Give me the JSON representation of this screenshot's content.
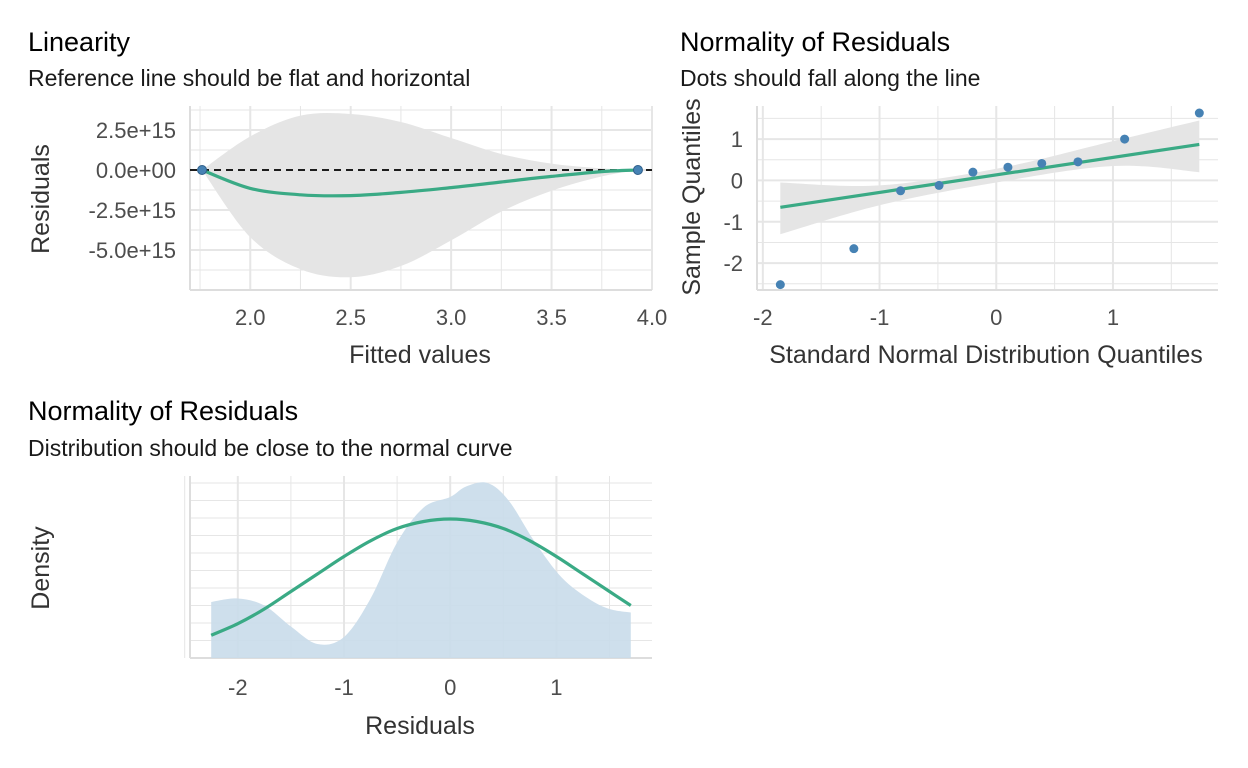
{
  "colors": {
    "line": "#3AAA85",
    "point": "#4682B4",
    "band": "#E5E5E5",
    "density_fill": "#C9DBEA",
    "grid": "#E6E6E6",
    "ref_line": "#000000"
  },
  "chart_data": [
    {
      "type": "scatter",
      "title": "Linearity",
      "subtitle": "Reference line should be flat and horizontal",
      "xlabel": "Fitted values",
      "ylabel": "Residuals",
      "xlim": [
        1.7,
        4.0
      ],
      "ylim": [
        -7500000000000000.0,
        4000000000000000.0
      ],
      "x_ticks": [
        2.0,
        2.5,
        3.0,
        3.5,
        4.0
      ],
      "x_tick_labels": [
        "2.0",
        "2.5",
        "3.0",
        "3.5",
        "4.0"
      ],
      "y_ticks": [
        2500000000000000.0,
        0,
        -2500000000000000.0,
        -5000000000000000.0
      ],
      "y_tick_labels": [
        "2.5e+15",
        "0.0e+00",
        "-2.5e+15",
        "-5.0e+15"
      ],
      "points": [
        {
          "x": 1.76,
          "y": 0
        },
        {
          "x": 3.93,
          "y": 0
        }
      ],
      "reference_line_y": 0,
      "smooth": [
        {
          "x": 1.76,
          "y": 0
        },
        {
          "x": 2.0,
          "y": -1150000000000000.0
        },
        {
          "x": 2.25,
          "y": -1550000000000000.0
        },
        {
          "x": 2.5,
          "y": -1600000000000000.0
        },
        {
          "x": 2.75,
          "y": -1400000000000000.0
        },
        {
          "x": 3.0,
          "y": -1100000000000000.0
        },
        {
          "x": 3.25,
          "y": -750000000000000.0
        },
        {
          "x": 3.5,
          "y": -400000000000000.0
        },
        {
          "x": 3.75,
          "y": -100000000000000.0
        },
        {
          "x": 3.93,
          "y": 0
        }
      ],
      "band_upper": [
        {
          "x": 1.76,
          "y": 0
        },
        {
          "x": 2.0,
          "y": 2100000000000000.0
        },
        {
          "x": 2.25,
          "y": 3400000000000000.0
        },
        {
          "x": 2.5,
          "y": 3500000000000000.0
        },
        {
          "x": 2.75,
          "y": 3000000000000000.0
        },
        {
          "x": 3.0,
          "y": 2000000000000000.0
        },
        {
          "x": 3.25,
          "y": 1000000000000000.0
        },
        {
          "x": 3.5,
          "y": 400000000000000.0
        },
        {
          "x": 3.75,
          "y": 100000000000000.0
        },
        {
          "x": 3.93,
          "y": 0
        }
      ],
      "band_lower": [
        {
          "x": 1.76,
          "y": 0
        },
        {
          "x": 2.0,
          "y": -4200000000000000.0
        },
        {
          "x": 2.25,
          "y": -6200000000000000.0
        },
        {
          "x": 2.5,
          "y": -6700000000000000.0
        },
        {
          "x": 2.75,
          "y": -6000000000000000.0
        },
        {
          "x": 3.0,
          "y": -4400000000000000.0
        },
        {
          "x": 3.25,
          "y": -2600000000000000.0
        },
        {
          "x": 3.5,
          "y": -1300000000000000.0
        },
        {
          "x": 3.75,
          "y": -400000000000000.0
        },
        {
          "x": 3.93,
          "y": 0
        }
      ]
    },
    {
      "type": "scatter",
      "title": "Normality of Residuals",
      "subtitle": "Dots should fall along the line",
      "xlabel": "Standard Normal Distribution Quantiles",
      "ylabel": "Sample Quantiles",
      "xlim": [
        -2.05,
        1.9
      ],
      "ylim": [
        -2.65,
        1.8
      ],
      "x_ticks": [
        -2,
        -1,
        0,
        1
      ],
      "x_tick_labels": [
        "-2",
        "-1",
        "0",
        "1"
      ],
      "y_ticks": [
        1,
        0,
        -1,
        -2
      ],
      "y_tick_labels": [
        "1",
        "0",
        "-1",
        "-2"
      ],
      "points": [
        {
          "x": -1.85,
          "y": -2.52
        },
        {
          "x": -1.22,
          "y": -1.65
        },
        {
          "x": -0.82,
          "y": -0.25
        },
        {
          "x": -0.49,
          "y": -0.12
        },
        {
          "x": -0.2,
          "y": 0.2
        },
        {
          "x": 0.1,
          "y": 0.32
        },
        {
          "x": 0.39,
          "y": 0.41
        },
        {
          "x": 0.7,
          "y": 0.45
        },
        {
          "x": 1.1,
          "y": 1.0
        },
        {
          "x": 1.74,
          "y": 1.63
        }
      ],
      "fit_line": [
        {
          "x": -1.85,
          "y": -0.65
        },
        {
          "x": 1.74,
          "y": 0.87
        }
      ],
      "band_upper": [
        {
          "x": -1.85,
          "y": -0.05
        },
        {
          "x": -1.0,
          "y": -0.12
        },
        {
          "x": 0.0,
          "y": 0.28
        },
        {
          "x": 1.0,
          "y": 0.95
        },
        {
          "x": 1.74,
          "y": 1.45
        }
      ],
      "band_lower": [
        {
          "x": -1.85,
          "y": -1.3
        },
        {
          "x": -1.0,
          "y": -0.6
        },
        {
          "x": 0.0,
          "y": -0.05
        },
        {
          "x": 1.0,
          "y": 0.35
        },
        {
          "x": 1.74,
          "y": 0.2
        }
      ]
    },
    {
      "type": "area",
      "title": "Normality of Residuals",
      "subtitle": "Distribution should be close to the normal curve",
      "xlabel": "Residuals",
      "ylabel": "Density",
      "xlim": [
        -2.45,
        1.9
      ],
      "ylim": [
        0,
        0.52
      ],
      "x_ticks": [
        -2,
        -1,
        0,
        1
      ],
      "x_tick_labels": [
        "-2",
        "-1",
        "0",
        "1"
      ],
      "density": [
        {
          "x": -2.25,
          "y": 0.16
        },
        {
          "x": -2.0,
          "y": 0.17
        },
        {
          "x": -1.75,
          "y": 0.15
        },
        {
          "x": -1.5,
          "y": 0.09
        },
        {
          "x": -1.25,
          "y": 0.04
        },
        {
          "x": -1.0,
          "y": 0.06
        },
        {
          "x": -0.75,
          "y": 0.17
        },
        {
          "x": -0.5,
          "y": 0.33
        },
        {
          "x": -0.25,
          "y": 0.43
        },
        {
          "x": 0.0,
          "y": 0.46
        },
        {
          "x": 0.15,
          "y": 0.49
        },
        {
          "x": 0.35,
          "y": 0.5
        },
        {
          "x": 0.55,
          "y": 0.45
        },
        {
          "x": 0.8,
          "y": 0.33
        },
        {
          "x": 1.05,
          "y": 0.23
        },
        {
          "x": 1.3,
          "y": 0.17
        },
        {
          "x": 1.5,
          "y": 0.14
        },
        {
          "x": 1.7,
          "y": 0.13
        }
      ],
      "normal_curve": [
        {
          "x": -2.25,
          "y": 0.065
        },
        {
          "x": -2.0,
          "y": 0.098
        },
        {
          "x": -1.75,
          "y": 0.14
        },
        {
          "x": -1.5,
          "y": 0.19
        },
        {
          "x": -1.25,
          "y": 0.24
        },
        {
          "x": -1.0,
          "y": 0.29
        },
        {
          "x": -0.75,
          "y": 0.335
        },
        {
          "x": -0.5,
          "y": 0.37
        },
        {
          "x": -0.25,
          "y": 0.39
        },
        {
          "x": 0.0,
          "y": 0.397
        },
        {
          "x": 0.25,
          "y": 0.39
        },
        {
          "x": 0.5,
          "y": 0.37
        },
        {
          "x": 0.75,
          "y": 0.335
        },
        {
          "x": 1.0,
          "y": 0.29
        },
        {
          "x": 1.25,
          "y": 0.24
        },
        {
          "x": 1.5,
          "y": 0.19
        },
        {
          "x": 1.7,
          "y": 0.15
        }
      ]
    }
  ]
}
